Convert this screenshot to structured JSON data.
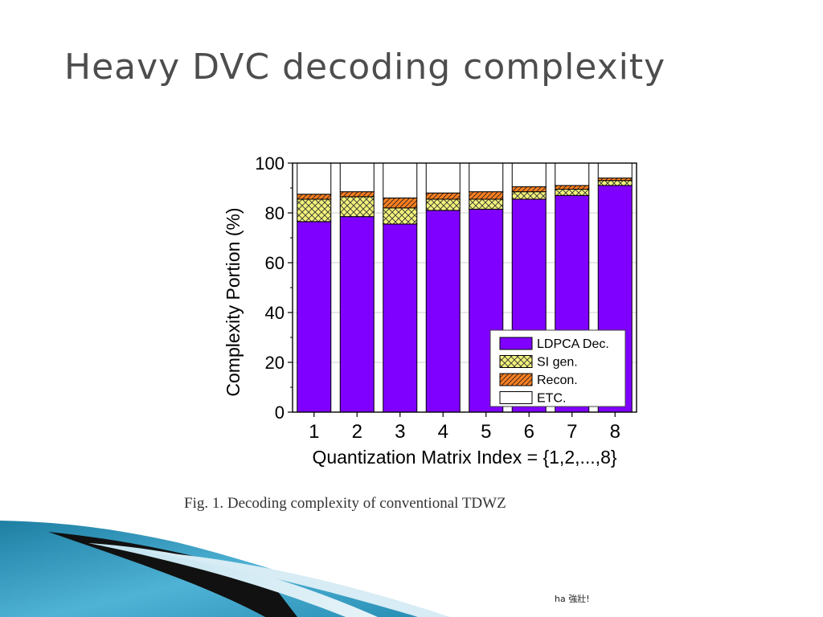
{
  "slide": {
    "title": "Heavy DVC decoding complexity",
    "caption": "Fig. 1. Decoding complexity of conventional TDWZ",
    "footer": "ha 強壯!"
  },
  "chart_data": {
    "type": "bar",
    "stacked": true,
    "title": "",
    "xlabel": "Quantization Matrix Index = {1,2,...,8}",
    "ylabel": "Complexity Portion (%)",
    "ylim": [
      0,
      100
    ],
    "yticks": [
      0,
      20,
      40,
      60,
      80,
      100
    ],
    "categories": [
      "1",
      "2",
      "3",
      "4",
      "5",
      "6",
      "7",
      "8"
    ],
    "series": [
      {
        "name": "LDPCA Dec.",
        "values": [
          76.5,
          78.5,
          75.5,
          81,
          81.5,
          85.5,
          87,
          91
        ],
        "color": "#7f00ff",
        "pattern": "solid"
      },
      {
        "name": "SI gen.",
        "values": [
          9,
          8,
          6.5,
          4.5,
          4,
          3,
          2.5,
          2
        ],
        "color": "#f2f27a",
        "pattern": "crosshatch"
      },
      {
        "name": "Recon.",
        "values": [
          2,
          2,
          4,
          2.5,
          3,
          2,
          1.5,
          1
        ],
        "color": "#ff7f1f",
        "pattern": "diagonal"
      },
      {
        "name": "ETC.",
        "values": [
          12.5,
          11.5,
          14,
          12,
          11.5,
          9.5,
          9,
          6
        ],
        "color": "#ffffff",
        "pattern": "solid"
      }
    ],
    "legend_position": "lower-right",
    "grid": true
  }
}
